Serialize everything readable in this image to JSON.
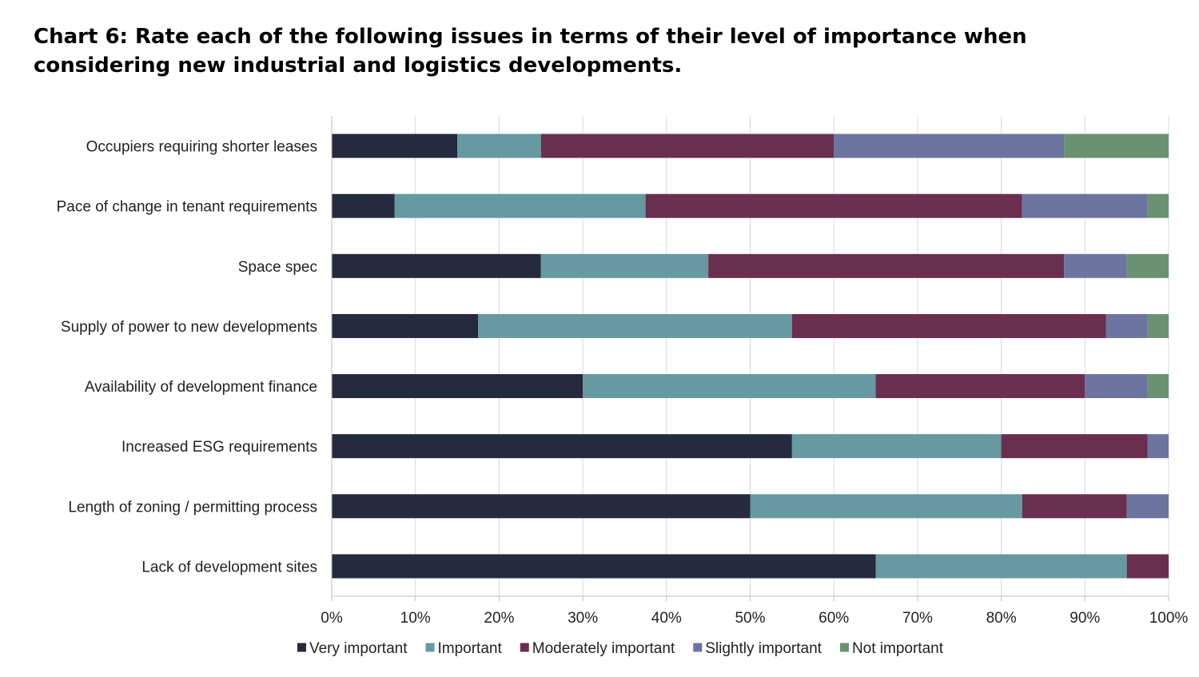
{
  "title_lines": [
    "Chart 6: Rate each of the following issues in terms of their level of importance when",
    "considering new industrial and logistics developments."
  ],
  "chart_data": {
    "type": "bar",
    "orientation": "horizontal",
    "stacked": true,
    "percent_stacked": true,
    "title": "Chart 6: Rate each of the following issues in terms of their level of importance when considering new industrial and logistics developments.",
    "xlabel": "",
    "ylabel": "",
    "xlim": [
      0,
      100
    ],
    "x_ticks": [
      "0%",
      "10%",
      "20%",
      "30%",
      "40%",
      "50%",
      "60%",
      "70%",
      "80%",
      "90%",
      "100%"
    ],
    "grid": true,
    "legend_position": "bottom",
    "categories": [
      "Occupiers requiring shorter leases",
      "Pace of change in tenant requirements",
      "Space spec",
      "Supply of power to new developments",
      "Availability of development finance",
      "Increased ESG requirements",
      "Length of zoning / permitting process",
      "Lack of development sites"
    ],
    "series": [
      {
        "name": "Very important",
        "color": "#262a3e",
        "values": [
          15,
          7.5,
          25,
          17.5,
          30,
          55,
          50,
          65
        ]
      },
      {
        "name": "Important",
        "color": "#6699a1",
        "values": [
          10,
          30,
          20,
          37.5,
          35,
          25,
          32.5,
          30
        ]
      },
      {
        "name": "Moderately important",
        "color": "#6a2e4e",
        "values": [
          35,
          45,
          42.5,
          37.5,
          25,
          17.5,
          12.5,
          5
        ]
      },
      {
        "name": "Slightly important",
        "color": "#6b75a0",
        "values": [
          27.5,
          15,
          7.5,
          5,
          7.5,
          2.5,
          5,
          0
        ]
      },
      {
        "name": "Not important",
        "color": "#6a9170",
        "values": [
          12.5,
          2.5,
          5,
          2.5,
          2.5,
          0,
          0,
          0
        ]
      }
    ]
  }
}
